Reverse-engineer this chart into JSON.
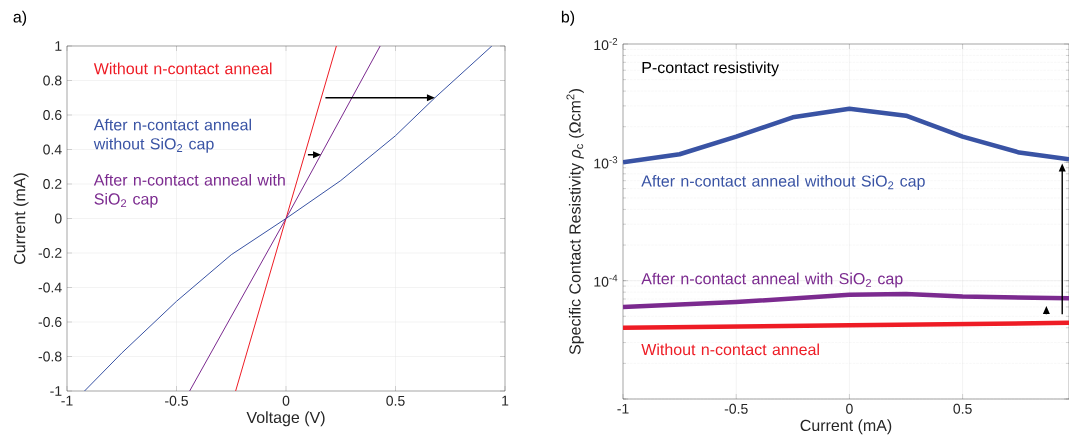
{
  "chart_data": [
    {
      "type": "line",
      "title": "a)",
      "xlabel": "Voltage (V)",
      "ylabel": "Current (mA)",
      "xlim": [
        -1,
        1
      ],
      "ylim": [
        -1,
        1
      ],
      "xticks": [
        -1,
        -0.5,
        0,
        0.5,
        1
      ],
      "yticks": [
        -1,
        -0.8,
        -0.6,
        -0.4,
        -0.2,
        0,
        0.2,
        0.4,
        0.6,
        0.8,
        1
      ],
      "grid": true,
      "series": [
        {
          "name": "Without n-contact anneal",
          "color": "#ee1c25",
          "x": [
            -0.23,
            0,
            0.23
          ],
          "values": [
            -1,
            0,
            1
          ]
        },
        {
          "name": "After n-contact anneal without SiO$_{2}$ cap",
          "color": "#3953a4",
          "x": [
            -0.92,
            -0.75,
            -0.5,
            -0.25,
            0,
            0.25,
            0.5,
            0.68,
            0.94
          ],
          "values": [
            -1,
            -0.78,
            -0.48,
            -0.21,
            0,
            0.22,
            0.48,
            0.7,
            1
          ]
        },
        {
          "name": "After n-contact anneal with SiO$_{2}$ cap",
          "color": "#7b2a8f",
          "x": [
            -0.44,
            0,
            0.43
          ],
          "values": [
            -1,
            0,
            1
          ]
        }
      ]
    },
    {
      "type": "line",
      "title": "b)",
      "subtitle": "P-contact resistivity",
      "xlabel": "Current (mA)",
      "ylabel": "Specific Contact Resistivity  *ρ*$_{c}$  (Ωcm$^{2}$)",
      "log": "y",
      "xlim": [
        -1,
        0.97
      ],
      "ylim": [
        1e-05,
        0.01
      ],
      "xticks": [
        -1,
        -0.5,
        0,
        0.5
      ],
      "yticks": [
        {
          "value": 1e-05,
          "label": null
        },
        {
          "value": 0.0001,
          "label": "10$^{-4}$"
        },
        {
          "value": 0.001,
          "label": "10$^{-3}$"
        },
        {
          "value": 0.01,
          "label": "10$^{-2}$"
        }
      ],
      "grid": true,
      "series": [
        {
          "name": "After n-contact anneal without SiO$_{2}$ cap",
          "color": "#3953a4",
          "x": [
            -1,
            -0.75,
            -0.5,
            -0.25,
            0,
            0.25,
            0.5,
            0.75,
            0.97
          ],
          "values": [
            0.001,
            0.00117,
            0.00165,
            0.0024,
            0.00284,
            0.00248,
            0.00165,
            0.00121,
            0.00106
          ]
        },
        {
          "name": "After n-contact anneal with SiO$_{2}$ cap",
          "color": "#7b2a8f",
          "x": [
            -1,
            -0.5,
            0,
            0.25,
            0.5,
            0.97
          ],
          "values": [
            6e-05,
            6.6e-05,
            7.6e-05,
            7.7e-05,
            7.35e-05,
            7.1e-05
          ]
        },
        {
          "name": "Without n-contact anneal",
          "color": "#ee1c25",
          "x": [
            -1,
            0,
            0.97
          ],
          "values": [
            4e-05,
            4.2e-05,
            4.4e-05
          ]
        }
      ]
    }
  ]
}
